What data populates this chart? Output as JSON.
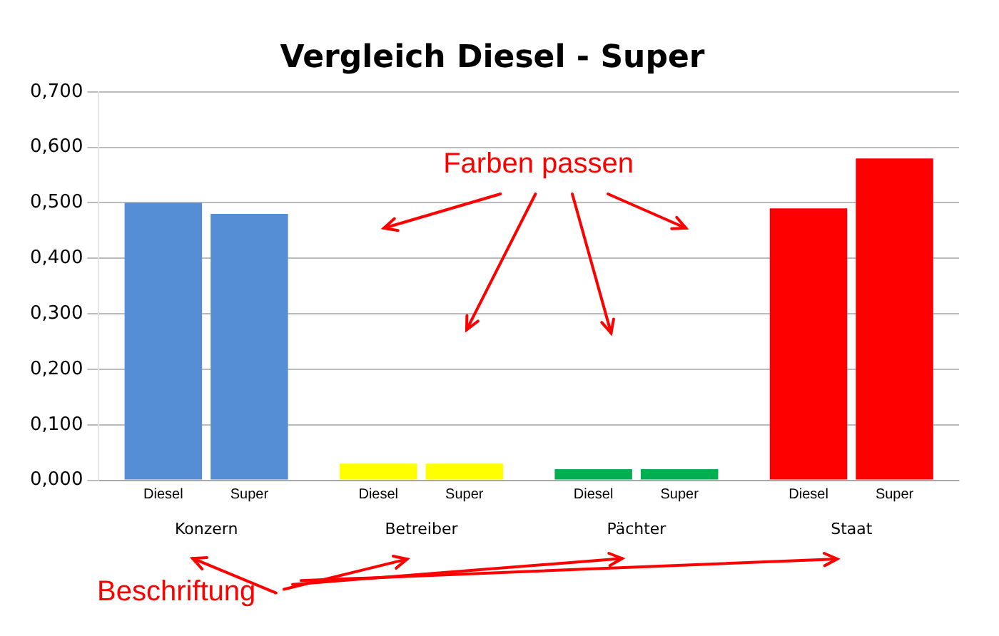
{
  "chart_data": {
    "type": "bar",
    "title": "Vergleich Diesel - Super",
    "categories": [
      "Konzern",
      "Betreiber",
      "Pächter",
      "Staat"
    ],
    "series": [
      {
        "name": "Diesel",
        "colors": [
          "#558ed5",
          "#ffff00",
          "#00b050",
          "#ff0000"
        ],
        "values": [
          0.5,
          0.03,
          0.02,
          0.49
        ]
      },
      {
        "name": "Super",
        "colors": [
          "#558ed5",
          "#ffff00",
          "#00b050",
          "#ff0000"
        ],
        "values": [
          0.48,
          0.03,
          0.02,
          0.58
        ]
      }
    ],
    "ylim": [
      0,
      0.7
    ],
    "yticks": [
      {
        "value": 0,
        "label": "0,000"
      },
      {
        "value": 0.1,
        "label": "0,100"
      },
      {
        "value": 0.2,
        "label": "0,200"
      },
      {
        "value": 0.3,
        "label": "0,300"
      },
      {
        "value": 0.4,
        "label": "0,400"
      },
      {
        "value": 0.5,
        "label": "0,500"
      },
      {
        "value": 0.6,
        "label": "0,600"
      },
      {
        "value": 0.7,
        "label": "0,700"
      }
    ],
    "grid": "y",
    "legend": false,
    "annotations": [
      "Farben passen",
      "Beschriftung"
    ]
  }
}
